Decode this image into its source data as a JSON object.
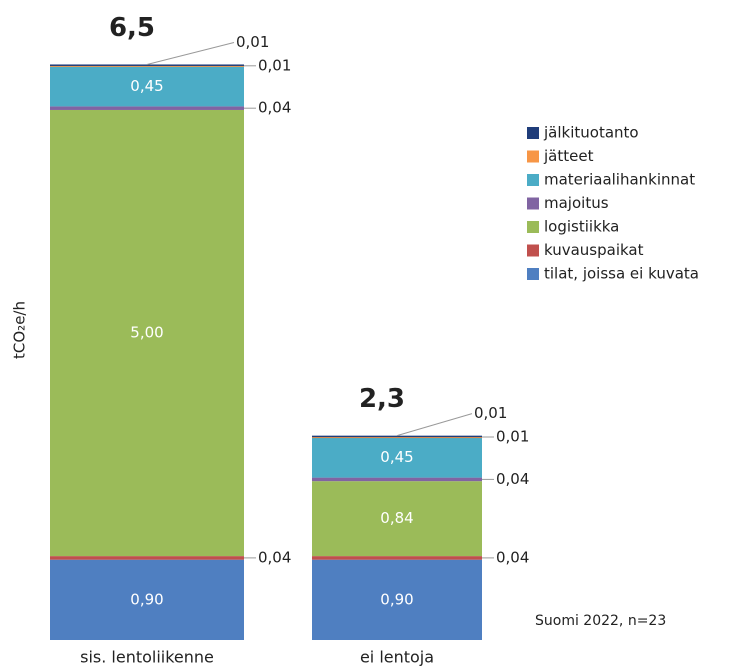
{
  "chart_data": {
    "type": "stacked_bar",
    "ylabel": "tCO₂e/h",
    "annotation": "Suomi 2022, n=23",
    "categories": [
      "sis. lentoliikenne",
      "ei lentoja"
    ],
    "ylim": [
      0,
      6.5
    ],
    "totals": {
      "values": [
        6.5,
        2.3
      ],
      "value_labels": [
        "6,5",
        "2,3"
      ]
    },
    "series": [
      {
        "name": "tilat, joissa ei kuvata",
        "color": "#4f7fc1",
        "values": [
          0.9,
          0.9
        ],
        "value_labels": [
          "0,90",
          "0,90"
        ]
      },
      {
        "name": "kuvauspaikat",
        "color": "#c0504d",
        "values": [
          0.04,
          0.04
        ],
        "value_labels": [
          "0,04",
          "0,04"
        ]
      },
      {
        "name": "logistiikka",
        "color": "#9bbb59",
        "values": [
          5.0,
          0.84
        ],
        "value_labels": [
          "5,00",
          "0,84"
        ]
      },
      {
        "name": "majoitus",
        "color": "#8064a2",
        "values": [
          0.04,
          0.04
        ],
        "value_labels": [
          "0,04",
          "0,04"
        ]
      },
      {
        "name": "materiaalihankinnat",
        "color": "#4bacc6",
        "values": [
          0.45,
          0.45
        ],
        "value_labels": [
          "0,45",
          "0,45"
        ]
      },
      {
        "name": "jätteet",
        "color": "#f79646",
        "values": [
          0.01,
          0.01
        ],
        "value_labels": [
          "0,01",
          "0,01"
        ]
      },
      {
        "name": "jälkituotanto",
        "color": "#1f3d7a",
        "values": [
          0.01,
          0.01
        ],
        "value_labels": [
          "0,01",
          "0,01"
        ]
      }
    ]
  }
}
